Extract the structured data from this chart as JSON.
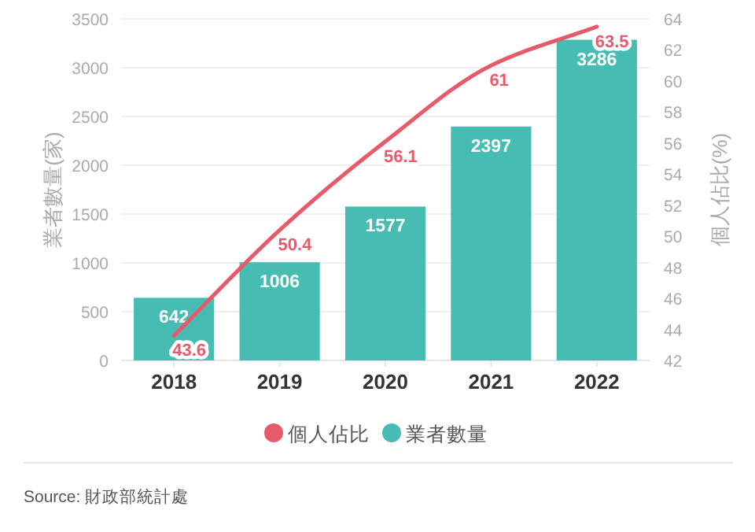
{
  "chart_data": {
    "type": "bar",
    "categories": [
      "2018",
      "2019",
      "2020",
      "2021",
      "2022"
    ],
    "series": [
      {
        "name": "個人佔比",
        "type": "line",
        "axis": "y2",
        "color": "#e85a6a",
        "values": [
          43.6,
          50.4,
          56.1,
          61,
          63.5
        ]
      },
      {
        "name": "業者數量",
        "color": "#46bcb2",
        "values": [
          642,
          1006,
          1577,
          2397,
          3286
        ]
      }
    ],
    "ylabel": "業者數量(家)",
    "y2label": "個人佔比(%)",
    "ylim": [
      0,
      3500
    ],
    "yticks": [
      0,
      500,
      1000,
      1500,
      2000,
      2500,
      3000,
      3500
    ],
    "y2lim": [
      42,
      64
    ],
    "y2ticks": [
      42,
      44,
      46,
      48,
      50,
      52,
      54,
      56,
      58,
      60,
      62,
      64
    ],
    "data_labels": true,
    "grid": "y",
    "legend": "bottom",
    "marker": "none",
    "annotations": [
      "Source: 財政部統計處"
    ]
  }
}
